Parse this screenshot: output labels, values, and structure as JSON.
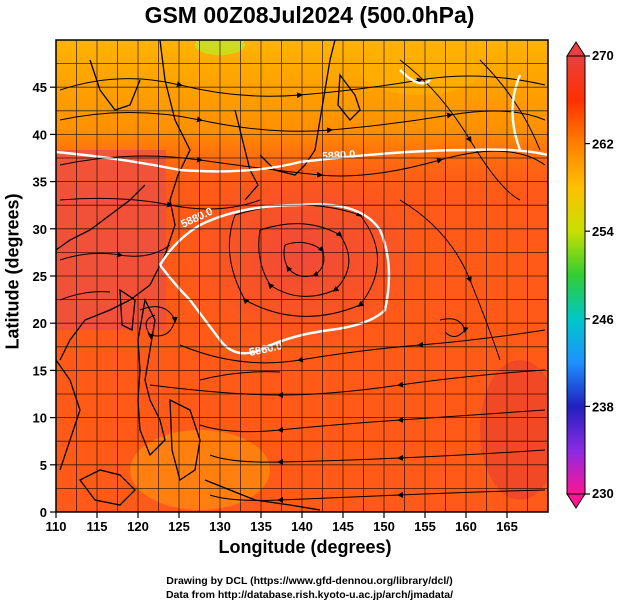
{
  "title": "GSM 00Z08Jul2024 (500.0hPa)",
  "x_axis": {
    "label": "Longitude (degrees)",
    "ticks": [
      "110",
      "115",
      "120",
      "125",
      "130",
      "135",
      "140",
      "145",
      "150",
      "155",
      "160",
      "165"
    ]
  },
  "y_axis": {
    "label": "Latitude  (degrees)",
    "ticks": [
      "0",
      "5",
      "10",
      "15",
      "20",
      "25",
      "30",
      "35",
      "40",
      "45"
    ]
  },
  "colorbar": {
    "ticks": [
      "270",
      "262",
      "254",
      "246",
      "238",
      "230"
    ],
    "colors": [
      "#ff1493",
      "#8a2be2",
      "#2020c0",
      "#1e90ff",
      "#00c8c8",
      "#32cd32",
      "#c8e000",
      "#ffc000",
      "#ff7f00",
      "#ff3000",
      "#e84040"
    ]
  },
  "contours": [
    {
      "label": "5880.0"
    },
    {
      "label": "5880.0"
    },
    {
      "label": "5880.0"
    }
  ],
  "credits": [
    "Drawing by DCL (https://www.gfd-dennou.org/library/dcl/)",
    "Data from http://database.rish.kyoto-u.ac.jp/arch/jmadata/"
  ]
}
